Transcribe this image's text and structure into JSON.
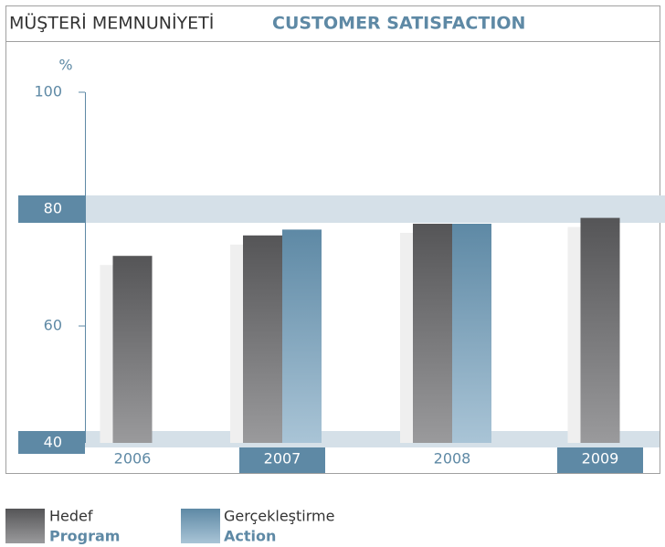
{
  "chart_data": {
    "type": "bar",
    "title": "MÜŞTERİ MEMNUNİYETİ",
    "subtitle": "CUSTOMER SATISFACTION",
    "y_label": "%",
    "categories": [
      "2006",
      "2007",
      "2008",
      "2009"
    ],
    "series": [
      {
        "name": "Hedef",
        "subname": "Program",
        "color": "#5a5a5c",
        "values": [
          72,
          75.5,
          77.5,
          78.5
        ]
      },
      {
        "name": "Gerçekleştirme",
        "subname": "Action",
        "color": "#5e89a5",
        "values": [
          null,
          76.5,
          77.5,
          null
        ]
      }
    ],
    "ylim": [
      40,
      100
    ],
    "yticks": [
      40,
      60,
      80,
      100
    ]
  }
}
